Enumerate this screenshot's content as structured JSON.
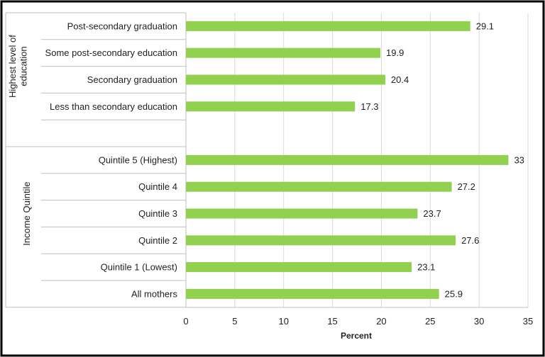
{
  "chart_data": {
    "type": "bar",
    "orientation": "horizontal",
    "xlabel": "Percent",
    "xlim": [
      0,
      35
    ],
    "xticks": [
      0,
      5,
      10,
      15,
      20,
      25,
      30,
      35
    ],
    "grid": "vertical",
    "bar_color": "#92d050",
    "groups": [
      {
        "name": "Highest level of education",
        "categories": [
          "Post-secondary graduation",
          "Some post-secondary education",
          "Secondary graduation",
          "Less than secondary education"
        ],
        "values": [
          29.1,
          19.9,
          20.4,
          17.3
        ]
      },
      {
        "name": "Income Quintile",
        "categories": [
          "Quintile 5 (Highest)",
          "Quintile 4",
          "Quintile 3",
          "Quintile 2",
          "Quintile 1 (Lowest)",
          "All mothers"
        ],
        "values": [
          33,
          27.2,
          23.7,
          27.6,
          23.1,
          25.9
        ]
      }
    ]
  }
}
